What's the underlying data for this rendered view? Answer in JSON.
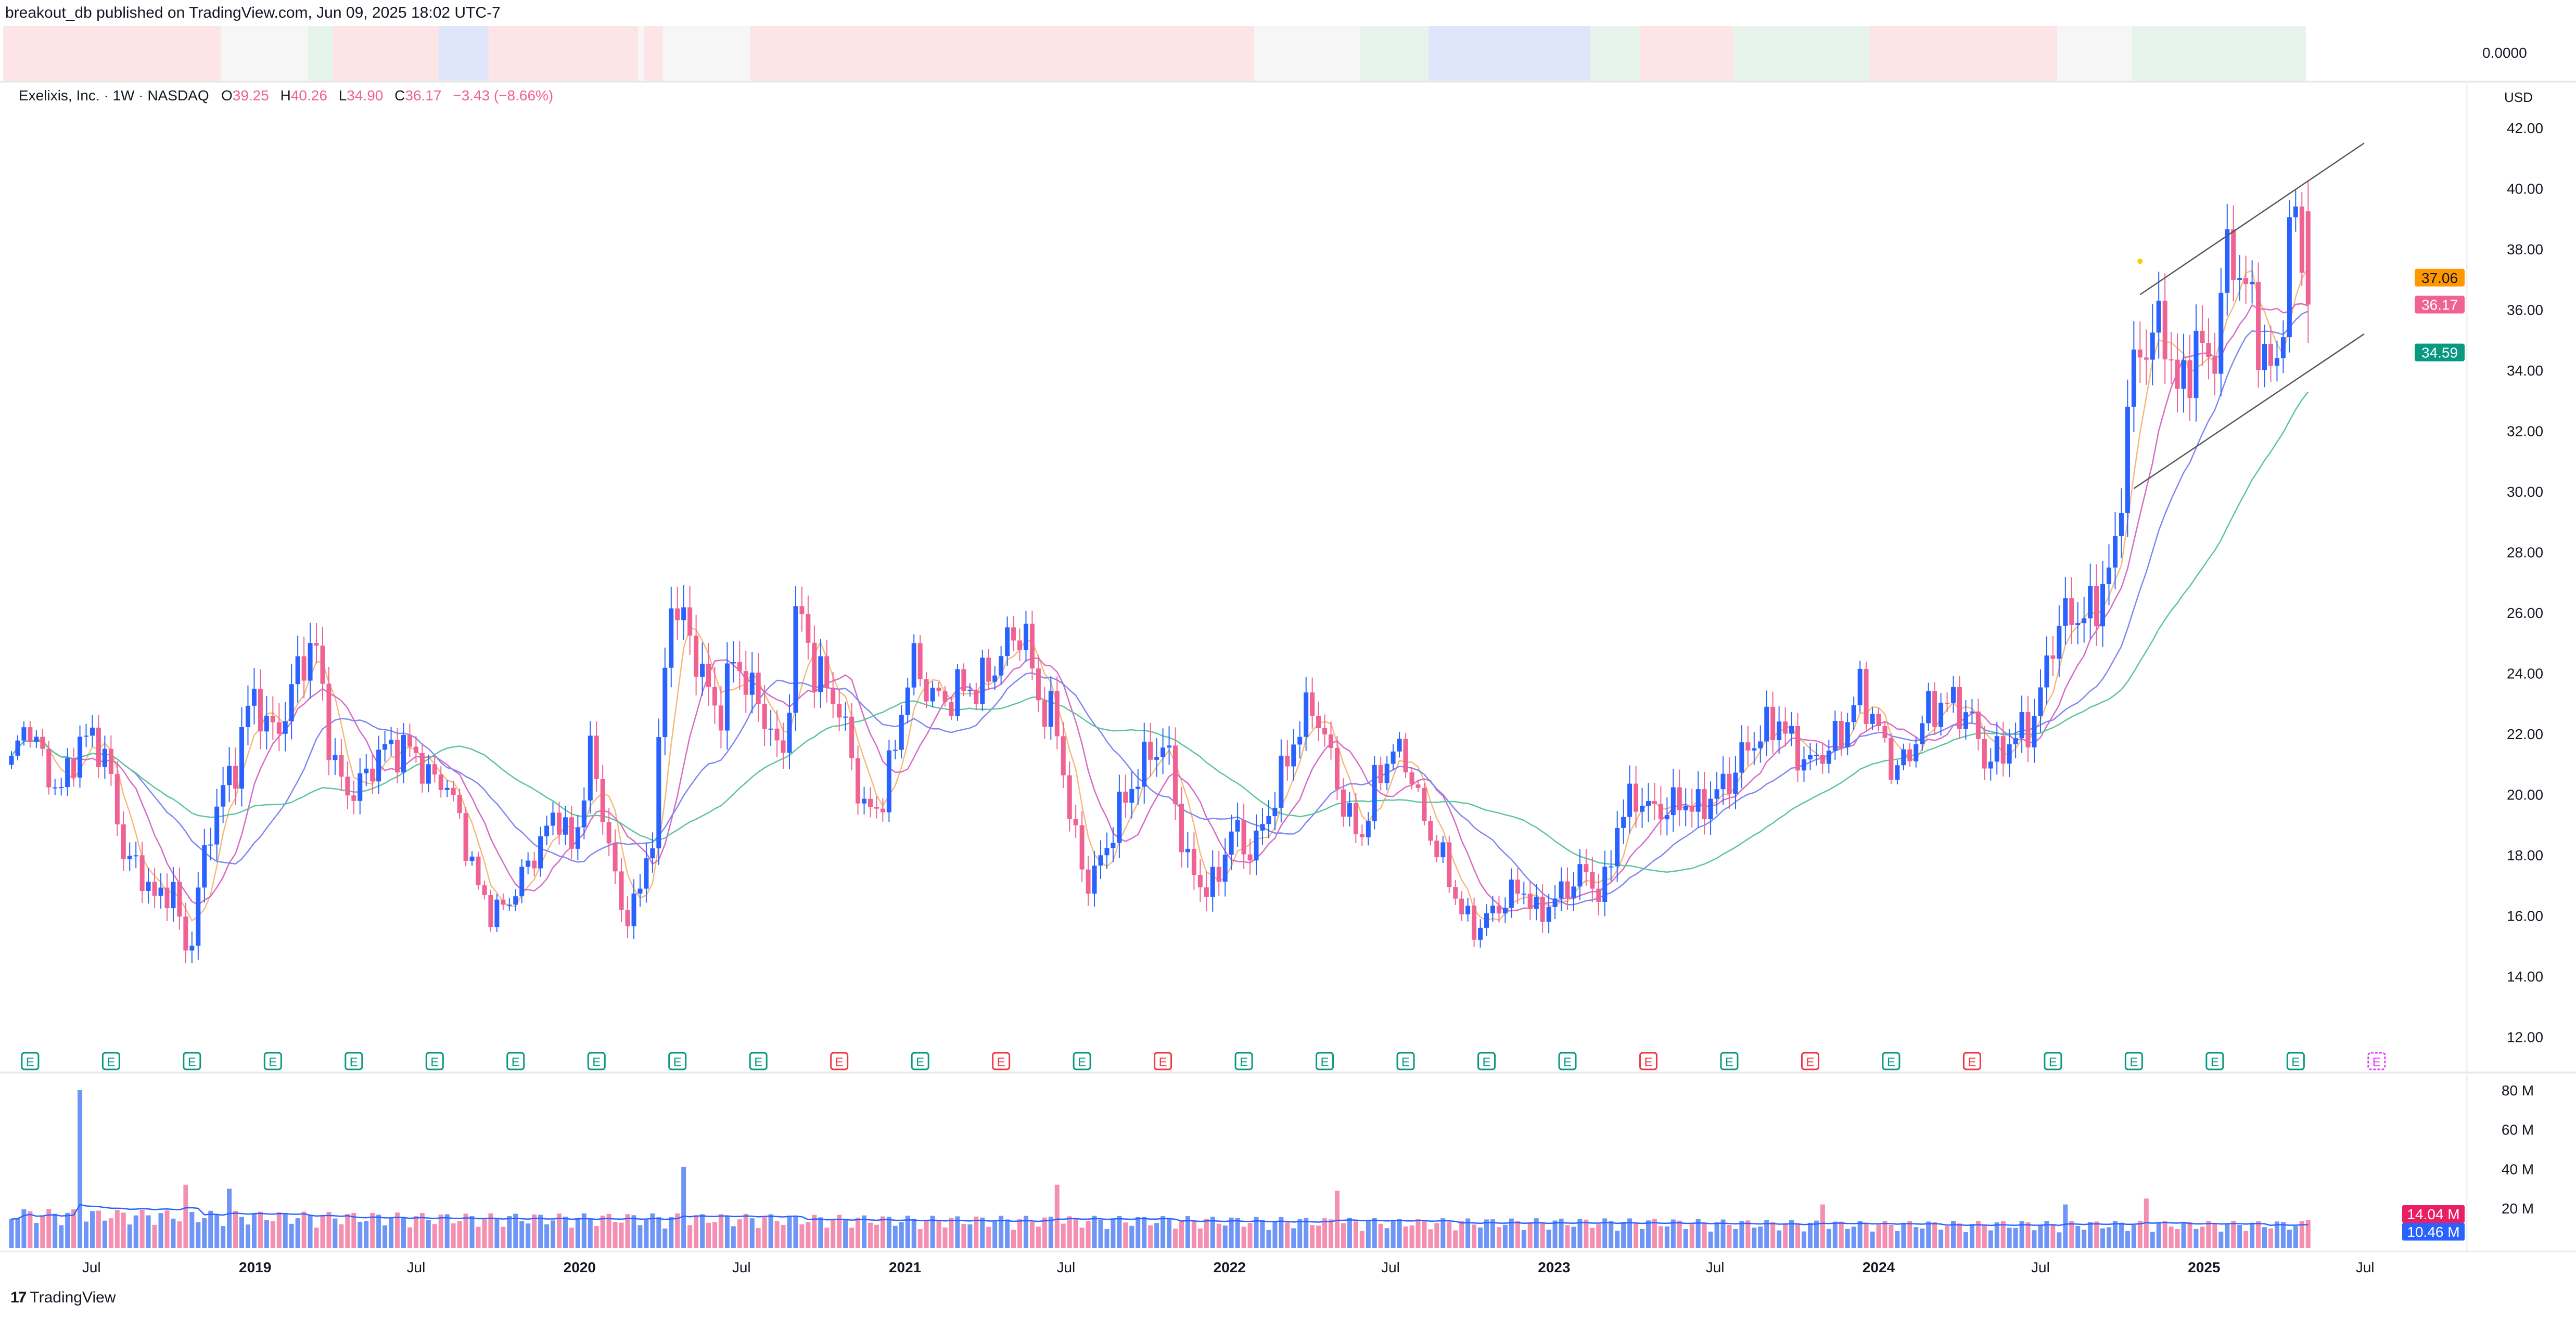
{
  "header": {
    "text": "breakout_db published on TradingView.com, Jun 09, 2025 18:02 UTC-7"
  },
  "legend": {
    "symbol": "Exelixis, Inc. · 1W · NASDAQ",
    "o_label": "O",
    "open": "39.25",
    "h_label": "H",
    "high": "40.26",
    "l_label": "L",
    "low": "34.90",
    "c_label": "C",
    "close": "36.17",
    "change": "−3.43 (−8.66%)"
  },
  "currency": "USD",
  "strip": {
    "value_label": "0.0000",
    "colors": {
      "bearish": "#fde4e6",
      "neutral": "#f6f6f6",
      "bullish": "#e6f4ec",
      "blue": "#dfe6fc"
    },
    "segments": [
      [
        "bearish",
        35
      ],
      [
        "neutral",
        14
      ],
      [
        "bullish",
        4
      ],
      [
        "bearish",
        17
      ],
      [
        "blue",
        8
      ],
      [
        "bearish",
        24
      ],
      [
        "neutral",
        1
      ],
      [
        "bearish",
        3
      ],
      [
        "neutral",
        14
      ],
      [
        "bearish",
        81
      ],
      [
        "neutral",
        17
      ],
      [
        "bullish",
        11
      ],
      [
        "blue",
        26
      ],
      [
        "bullish",
        8
      ],
      [
        "bearish",
        15
      ],
      [
        "bullish",
        22
      ],
      [
        "bearish",
        30
      ],
      [
        "neutral",
        12
      ],
      [
        "bullish",
        28
      ]
    ]
  },
  "chart_data": {
    "type": "candlestick",
    "interval": "1W",
    "first_week": "2018-04-02",
    "weeks": 370,
    "ylim": [
      12,
      42
    ],
    "price_ticks": [
      "42.00",
      "40.00",
      "38.00",
      "36.00",
      "34.00",
      "32.00",
      "30.00",
      "28.00",
      "26.00",
      "24.00",
      "22.00",
      "20.00",
      "18.00",
      "16.00",
      "14.00",
      "12.00"
    ],
    "close_path": [
      21,
      22.5,
      21,
      20,
      21.5,
      22,
      21,
      18,
      17.5,
      16.5,
      17,
      14.5,
      18,
      20,
      21,
      23.5,
      22,
      22.5,
      24.5,
      24.8,
      21,
      20,
      20.5,
      21.5,
      21.5,
      21.5,
      20.5,
      20.5,
      19,
      17,
      16,
      16.5,
      17.5,
      18.5,
      19.5,
      18,
      21.5,
      19,
      16,
      16.5,
      19,
      26.5,
      25.5,
      24,
      22.5,
      24.5,
      23.5,
      22.5,
      21,
      26.5,
      24,
      23.5,
      22,
      19.5,
      19.5,
      21.5,
      24.5,
      23.5,
      23,
      23.5,
      23.5,
      24,
      25,
      25.5,
      23,
      22.5,
      19,
      17,
      18,
      19.5,
      20.5,
      21.5,
      21.5,
      18,
      17,
      17,
      19,
      18,
      19,
      20.5,
      22,
      23,
      21.5,
      19.5,
      18.5,
      20.5,
      21.5,
      21,
      19,
      18,
      16.5,
      15.5,
      16,
      16.5,
      17,
      16,
      16.5,
      17,
      17.5,
      16.5,
      19,
      20,
      19.5,
      19.5,
      19.8,
      19.5,
      20,
      20.5,
      21.5,
      22,
      22.5,
      21.5,
      21,
      21.5,
      22,
      23.5,
      22.5,
      21,
      21,
      22.5,
      23,
      23,
      22.5,
      21,
      21.5,
      22,
      22.5,
      25,
      26,
      25.8,
      26.5,
      28,
      34,
      35,
      35.5,
      33,
      35,
      34,
      38,
      37,
      35,
      33.5,
      39.6,
      36.17
    ],
    "last_bar": {
      "open": 39.25,
      "high": 40.26,
      "low": 34.9,
      "close": 36.17
    },
    "moving_averages": [
      {
        "period": 5,
        "color": "#f5b97a"
      },
      {
        "period": 10,
        "color": "#d66ac6"
      },
      {
        "period": 20,
        "color": "#7f86f0"
      },
      {
        "period": 40,
        "color": "#5cc49c"
      }
    ],
    "price_labels": [
      {
        "value": "37.06",
        "price": 37.06,
        "bg": "#ff9800",
        "fg": "#131722"
      },
      {
        "value": "36.17",
        "price": 36.17,
        "bg": "#f06292",
        "fg": "#ffffff"
      },
      {
        "value": "34.59",
        "price": 34.59,
        "bg": "#089981",
        "fg": "#ffffff"
      }
    ],
    "channel": {
      "upper": [
        {
          "date": "2024-10-21",
          "price": 36.5
        },
        {
          "date": "2025-06-30",
          "price": 41.5
        }
      ],
      "lower": [
        {
          "date": "2024-10-14",
          "price": 30.1
        },
        {
          "date": "2025-06-30",
          "price": 35.2
        }
      ],
      "color": "#555555"
    },
    "marker": {
      "date": "2024-10-21",
      "price": 37.6,
      "color": "#f5d000"
    },
    "colors": {
      "up": "#2962ff",
      "down": "#f06292",
      "vol_up": "#6f95f7",
      "vol_down": "#f48fb1",
      "vol_ma": "#2962ff"
    },
    "earnings": {
      "label": "E",
      "types": [
        "beat",
        "beat",
        "beat",
        "beat",
        "beat",
        "beat",
        "beat",
        "beat",
        "beat",
        "beat",
        "miss",
        "beat",
        "miss",
        "beat",
        "miss",
        "beat",
        "beat",
        "beat",
        "beat",
        "beat",
        "miss",
        "beat",
        "miss",
        "beat",
        "miss",
        "beat",
        "beat",
        "beat",
        "beat",
        "upcoming"
      ],
      "colors": {
        "beat": "#089981",
        "miss": "#f23645",
        "upcoming": "#e040fb"
      }
    },
    "volume": {
      "ticks": [
        "80 M",
        "60 M",
        "40 M",
        "20 M"
      ],
      "tick_values": [
        80,
        60,
        40,
        20
      ],
      "base_M": [
        16,
        15,
        14,
        14,
        13,
        13,
        12,
        12,
        11,
        11,
        11
      ],
      "spikes": [
        {
          "date": "2018-06-18",
          "volume_M": 80
        },
        {
          "date": "2018-10-15",
          "volume_M": 32
        },
        {
          "date": "2018-12-03",
          "volume_M": 30
        },
        {
          "date": "2020-04-27",
          "volume_M": 41
        },
        {
          "date": "2021-06-21",
          "volume_M": 32
        },
        {
          "date": "2022-05-02",
          "volume_M": 29
        },
        {
          "date": "2023-10-30",
          "volume_M": 22
        },
        {
          "date": "2024-07-29",
          "volume_M": 22
        },
        {
          "date": "2024-10-28",
          "volume_M": 25
        }
      ],
      "last_volume_M": 14.04,
      "labels": [
        {
          "value": "14.04 M",
          "bg": "#e91e63"
        },
        {
          "value": "10.46 M",
          "bg": "#2962ff"
        }
      ]
    },
    "x_ticks": [
      {
        "label": "Jul",
        "date": "2018-07-01"
      },
      {
        "label": "2019",
        "date": "2019-01-01"
      },
      {
        "label": "Jul",
        "date": "2019-07-01"
      },
      {
        "label": "2020",
        "date": "2020-01-01"
      },
      {
        "label": "Jul",
        "date": "2020-07-01"
      },
      {
        "label": "2021",
        "date": "2021-01-01"
      },
      {
        "label": "Jul",
        "date": "2021-07-01"
      },
      {
        "label": "2022",
        "date": "2022-01-01"
      },
      {
        "label": "Jul",
        "date": "2022-07-01"
      },
      {
        "label": "2023",
        "date": "2023-01-01"
      },
      {
        "label": "Jul",
        "date": "2023-07-01"
      },
      {
        "label": "2024",
        "date": "2024-01-01"
      },
      {
        "label": "Jul",
        "date": "2024-07-01"
      },
      {
        "label": "2025",
        "date": "2025-01-01"
      },
      {
        "label": "Jul",
        "date": "2025-07-01"
      }
    ]
  },
  "footer": {
    "logo_mark": "17",
    "brand": "TradingView"
  }
}
